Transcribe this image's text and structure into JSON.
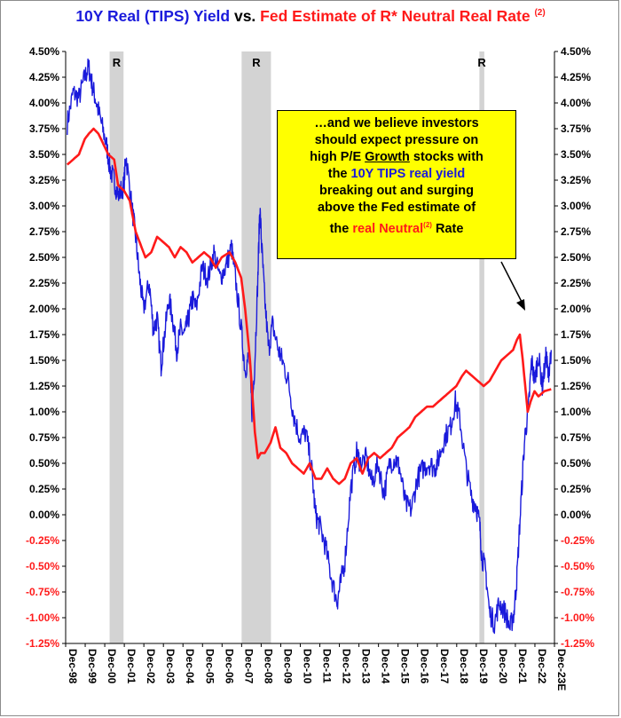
{
  "title": {
    "part1": "10Y Real (TIPS) Yield",
    "part2": " vs. ",
    "part3": "Fed Estimate of R* Neutral Real Rate",
    "sup": "(2)"
  },
  "callout": {
    "line1": "…and we believe investors",
    "line2": "should expect pressure on",
    "line3_pre": "high P/E ",
    "line3_u": "Growth",
    "line3_post": " stocks with",
    "line4_pre": "the ",
    "line4_hl": "10Y TIPS real yield",
    "line5": "breaking out and surging",
    "line6": "above the Fed estimate of",
    "line7_pre": "the ",
    "line7_hl": "real Neutral",
    "line7_sup": "(2)",
    "line7_post": " Rate"
  },
  "chart_data": {
    "type": "line",
    "x_tick_labels": [
      "Dec-98",
      "Dec-99",
      "Dec-00",
      "Dec-01",
      "Dec-02",
      "Dec-03",
      "Dec-04",
      "Dec-05",
      "Dec-06",
      "Dec-07",
      "Dec-08",
      "Dec-09",
      "Dec-10",
      "Dec-11",
      "Dec-12",
      "Dec-13",
      "Dec-14",
      "Dec-15",
      "Dec-16",
      "Dec-17",
      "Dec-18",
      "Dec-19",
      "Dec-20",
      "Dec-21",
      "Dec-22",
      "Dec-23E"
    ],
    "ylim": [
      -1.25,
      4.5
    ],
    "y_ticks": [
      4.5,
      4.25,
      4.0,
      3.75,
      3.5,
      3.25,
      3.0,
      2.75,
      2.5,
      2.25,
      2.0,
      1.75,
      1.5,
      1.25,
      1.0,
      0.75,
      0.5,
      0.25,
      0.0,
      -0.25,
      -0.5,
      -0.75,
      -1.0,
      -1.25
    ],
    "y_tick_labels": [
      "4.50%",
      "4.25%",
      "4.00%",
      "3.75%",
      "3.50%",
      "3.25%",
      "3.00%",
      "2.75%",
      "2.50%",
      "2.25%",
      "2.00%",
      "1.75%",
      "1.50%",
      "1.25%",
      "1.00%",
      "0.75%",
      "0.50%",
      "0.25%",
      "0.00%",
      "-0.25%",
      "-0.50%",
      "-0.75%",
      "-1.00%",
      "-1.25%"
    ],
    "negative_tick_color": "#ff1a1a",
    "recessions": [
      {
        "start": 2001.17,
        "end": 2001.88,
        "label": "R"
      },
      {
        "start": 2007.92,
        "end": 2009.42,
        "label": "R"
      },
      {
        "start": 2020.08,
        "end": 2020.33,
        "label": "R"
      }
    ],
    "series": [
      {
        "color": "#1a1adb",
        "points": [
          [
            1999.0,
            3.8
          ],
          [
            1999.3,
            4.1
          ],
          [
            1999.6,
            4.05
          ],
          [
            1999.9,
            4.25
          ],
          [
            2000.1,
            4.35
          ],
          [
            2000.3,
            4.15
          ],
          [
            2000.5,
            4.0
          ],
          [
            2000.75,
            3.8
          ],
          [
            2001.0,
            3.6
          ],
          [
            2001.2,
            3.35
          ],
          [
            2001.4,
            3.25
          ],
          [
            2001.6,
            3.1
          ],
          [
            2001.9,
            3.2
          ],
          [
            2002.0,
            3.5
          ],
          [
            2002.3,
            3.0
          ],
          [
            2002.5,
            2.7
          ],
          [
            2002.7,
            2.3
          ],
          [
            2002.9,
            2.0
          ],
          [
            2003.2,
            2.25
          ],
          [
            2003.4,
            1.8
          ],
          [
            2003.6,
            1.9
          ],
          [
            2003.8,
            1.45
          ],
          [
            2003.95,
            1.7
          ],
          [
            2004.2,
            2.1
          ],
          [
            2004.4,
            1.9
          ],
          [
            2004.6,
            1.6
          ],
          [
            2004.8,
            1.8
          ],
          [
            2005.0,
            1.75
          ],
          [
            2005.2,
            1.9
          ],
          [
            2005.4,
            2.1
          ],
          [
            2005.6,
            2.0
          ],
          [
            2005.9,
            2.4
          ],
          [
            2006.2,
            2.3
          ],
          [
            2006.5,
            2.55
          ],
          [
            2006.8,
            2.3
          ],
          [
            2007.1,
            2.4
          ],
          [
            2007.4,
            2.6
          ],
          [
            2007.6,
            2.3
          ],
          [
            2007.9,
            1.8
          ],
          [
            2008.1,
            1.4
          ],
          [
            2008.3,
            1.55
          ],
          [
            2008.45,
            1.0
          ],
          [
            2008.6,
            1.5
          ],
          [
            2008.75,
            2.3
          ],
          [
            2008.85,
            3.0
          ],
          [
            2008.95,
            2.6
          ],
          [
            2009.1,
            2.1
          ],
          [
            2009.3,
            1.6
          ],
          [
            2009.5,
            1.85
          ],
          [
            2009.8,
            1.6
          ],
          [
            2010.0,
            1.5
          ],
          [
            2010.3,
            1.3
          ],
          [
            2010.6,
            0.95
          ],
          [
            2010.9,
            0.75
          ],
          [
            2011.2,
            0.8
          ],
          [
            2011.5,
            0.45
          ],
          [
            2011.7,
            0.0
          ],
          [
            2011.9,
            -0.1
          ],
          [
            2012.2,
            -0.3
          ],
          [
            2012.5,
            -0.6
          ],
          [
            2012.8,
            -0.85
          ],
          [
            2012.95,
            -0.7
          ],
          [
            2013.2,
            -0.45
          ],
          [
            2013.5,
            0.25
          ],
          [
            2013.8,
            0.6
          ],
          [
            2014.0,
            0.5
          ],
          [
            2014.3,
            0.55
          ],
          [
            2014.6,
            0.3
          ],
          [
            2014.9,
            0.5
          ],
          [
            2015.2,
            0.2
          ],
          [
            2015.5,
            0.5
          ],
          [
            2015.8,
            0.55
          ],
          [
            2016.0,
            0.45
          ],
          [
            2016.3,
            0.1
          ],
          [
            2016.6,
            0.05
          ],
          [
            2016.9,
            0.35
          ],
          [
            2017.2,
            0.45
          ],
          [
            2017.5,
            0.5
          ],
          [
            2017.8,
            0.45
          ],
          [
            2018.0,
            0.55
          ],
          [
            2018.3,
            0.75
          ],
          [
            2018.6,
            0.85
          ],
          [
            2018.85,
            1.1
          ],
          [
            2019.1,
            0.9
          ],
          [
            2019.4,
            0.45
          ],
          [
            2019.7,
            0.15
          ],
          [
            2019.9,
            0.1
          ],
          [
            2020.1,
            -0.1
          ],
          [
            2020.2,
            -0.4
          ],
          [
            2020.4,
            -0.55
          ],
          [
            2020.6,
            -0.95
          ],
          [
            2020.85,
            -1.05
          ],
          [
            2021.1,
            -0.85
          ],
          [
            2021.4,
            -0.95
          ],
          [
            2021.65,
            -1.1
          ],
          [
            2021.85,
            -0.95
          ],
          [
            2022.0,
            -0.6
          ],
          [
            2022.2,
            0.1
          ],
          [
            2022.4,
            0.75
          ],
          [
            2022.6,
            1.05
          ],
          [
            2022.75,
            1.5
          ],
          [
            2022.9,
            1.3
          ],
          [
            2023.1,
            1.55
          ],
          [
            2023.3,
            1.25
          ],
          [
            2023.5,
            1.55
          ],
          [
            2023.6,
            1.35
          ],
          [
            2023.75,
            1.6
          ]
        ]
      },
      {
        "color": "#ff1a1a",
        "points": [
          [
            1999.0,
            3.4
          ],
          [
            1999.3,
            3.45
          ],
          [
            1999.6,
            3.5
          ],
          [
            1999.9,
            3.65
          ],
          [
            2000.1,
            3.7
          ],
          [
            2000.35,
            3.75
          ],
          [
            2000.6,
            3.7
          ],
          [
            2000.85,
            3.6
          ],
          [
            2001.1,
            3.5
          ],
          [
            2001.4,
            3.45
          ],
          [
            2001.6,
            3.2
          ],
          [
            2001.9,
            3.15
          ],
          [
            2002.2,
            3.05
          ],
          [
            2002.5,
            2.75
          ],
          [
            2002.8,
            2.6
          ],
          [
            2003.0,
            2.5
          ],
          [
            2003.3,
            2.55
          ],
          [
            2003.6,
            2.7
          ],
          [
            2003.9,
            2.65
          ],
          [
            2004.2,
            2.6
          ],
          [
            2004.5,
            2.5
          ],
          [
            2004.8,
            2.6
          ],
          [
            2005.1,
            2.55
          ],
          [
            2005.4,
            2.45
          ],
          [
            2005.7,
            2.5
          ],
          [
            2006.0,
            2.55
          ],
          [
            2006.3,
            2.5
          ],
          [
            2006.6,
            2.4
          ],
          [
            2006.9,
            2.5
          ],
          [
            2007.3,
            2.55
          ],
          [
            2007.6,
            2.45
          ],
          [
            2007.9,
            2.3
          ],
          [
            2008.1,
            2.0
          ],
          [
            2008.35,
            1.5
          ],
          [
            2008.6,
            0.8
          ],
          [
            2008.75,
            0.55
          ],
          [
            2008.9,
            0.6
          ],
          [
            2009.1,
            0.6
          ],
          [
            2009.4,
            0.7
          ],
          [
            2009.65,
            0.85
          ],
          [
            2009.9,
            0.65
          ],
          [
            2010.2,
            0.6
          ],
          [
            2010.5,
            0.5
          ],
          [
            2010.8,
            0.45
          ],
          [
            2011.1,
            0.4
          ],
          [
            2011.4,
            0.5
          ],
          [
            2011.7,
            0.35
          ],
          [
            2012.0,
            0.35
          ],
          [
            2012.3,
            0.45
          ],
          [
            2012.6,
            0.35
          ],
          [
            2012.9,
            0.3
          ],
          [
            2013.2,
            0.35
          ],
          [
            2013.5,
            0.5
          ],
          [
            2013.8,
            0.55
          ],
          [
            2014.1,
            0.4
          ],
          [
            2014.4,
            0.55
          ],
          [
            2014.7,
            0.6
          ],
          [
            2015.0,
            0.55
          ],
          [
            2015.3,
            0.6
          ],
          [
            2015.6,
            0.65
          ],
          [
            2015.9,
            0.75
          ],
          [
            2016.2,
            0.8
          ],
          [
            2016.5,
            0.85
          ],
          [
            2016.8,
            0.95
          ],
          [
            2017.1,
            1.0
          ],
          [
            2017.4,
            1.05
          ],
          [
            2017.7,
            1.05
          ],
          [
            2018.0,
            1.1
          ],
          [
            2018.3,
            1.15
          ],
          [
            2018.6,
            1.2
          ],
          [
            2018.9,
            1.25
          ],
          [
            2019.2,
            1.35
          ],
          [
            2019.4,
            1.4
          ],
          [
            2019.7,
            1.35
          ],
          [
            2020.0,
            1.3
          ],
          [
            2020.3,
            1.25
          ],
          [
            2020.6,
            1.3
          ],
          [
            2020.9,
            1.4
          ],
          [
            2021.2,
            1.5
          ],
          [
            2021.5,
            1.55
          ],
          [
            2021.8,
            1.6
          ],
          [
            2022.0,
            1.7
          ],
          [
            2022.15,
            1.75
          ],
          [
            2022.3,
            1.5
          ],
          [
            2022.45,
            1.2
          ],
          [
            2022.55,
            1.0
          ],
          [
            2022.7,
            1.1
          ],
          [
            2022.9,
            1.2
          ],
          [
            2023.1,
            1.15
          ],
          [
            2023.4,
            1.2
          ],
          [
            2023.75,
            1.22
          ]
        ]
      }
    ]
  }
}
